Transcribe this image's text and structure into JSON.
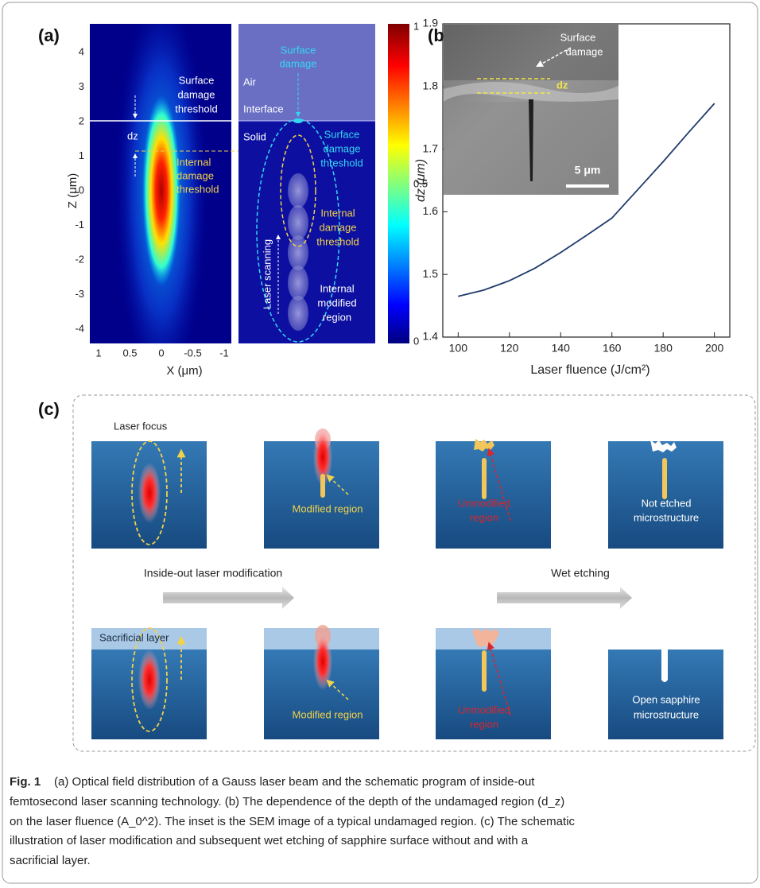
{
  "panel_a": {
    "label": "(a)",
    "z_axis_label": "Z (μm)",
    "x_axis_label": "X (μm)",
    "z_ticks": [
      4,
      3,
      2,
      1,
      0,
      -1,
      -2,
      -3,
      -4
    ],
    "x_ticks": [
      1,
      0.5,
      0,
      -0.5,
      -1
    ],
    "colorbar_ticks": [
      1,
      0.5,
      0
    ],
    "left_surface_threshold": [
      "Surface",
      "damage",
      "threshold"
    ],
    "dz": "dz",
    "left_internal_threshold": [
      "Internal",
      "damage",
      "threshold"
    ],
    "surface_damage": [
      "Surface",
      "damage"
    ],
    "air": "Air",
    "interface": "Interface",
    "solid": "Solid",
    "right_surface_threshold": [
      "Surface",
      "damage",
      "threshold"
    ],
    "right_internal_threshold": [
      "Internal",
      "damage",
      "threshold"
    ],
    "laser_scanning": "Laser scanning",
    "internal_modified_region": [
      "Internal",
      "modified",
      "region"
    ]
  },
  "chart_data": {
    "type": "line",
    "panel_label": "(b)",
    "x_label": "Laser fluence (J/cm²)",
    "y_label": "dz (μm)",
    "x": [
      100,
      110,
      120,
      130,
      140,
      150,
      160,
      170,
      180,
      190,
      200
    ],
    "series": [
      {
        "color": "#1f3b6b",
        "values": [
          1.465,
          1.475,
          1.49,
          1.51,
          1.535,
          1.562,
          1.59,
          1.635,
          1.68,
          1.727,
          1.773
        ]
      }
    ],
    "xlim": [
      94,
      206
    ],
    "ylim": [
      1.4,
      1.9
    ],
    "xticks": [
      100,
      120,
      140,
      160,
      180,
      200
    ],
    "yticks": [
      1.4,
      1.5,
      1.6,
      1.7,
      1.8,
      1.9
    ],
    "inset": {
      "surface_damage": [
        "Surface",
        "damage"
      ],
      "dz": "dz",
      "scale_bar": "5 μm"
    }
  },
  "panel_c": {
    "label": "(c)",
    "laser_focus": "Laser focus",
    "modified_region_top": "Modified region",
    "unmodified_region_top": [
      "Unmodified",
      "region"
    ],
    "not_etched": [
      "Not etched",
      "microstructure"
    ],
    "inside_out": "Inside-out laser modification",
    "wet_etching": "Wet etching",
    "sacrificial_layer": "Sacrificial layer",
    "modified_region_bottom": "Modified region",
    "unmodified_region_bottom": [
      "Unmodified",
      "region"
    ],
    "open_sapphire": [
      "Open sapphire",
      "microstructure"
    ]
  },
  "caption": {
    "label": "Fig. 1",
    "lines": [
      "(a) Optical field distribution of a Gauss laser beam and the schematic program of inside-out",
      "femtosecond laser scanning technology. (b) The dependence of the depth of the undamaged region (d_z)",
      "on the laser fluence (A_0^2). The inset is the SEM image of a typical undamaged region. (c) The schematic",
      "illustration of laser modification and subsequent wet etching of sapphire surface without and with a",
      "sacrificial layer."
    ]
  }
}
